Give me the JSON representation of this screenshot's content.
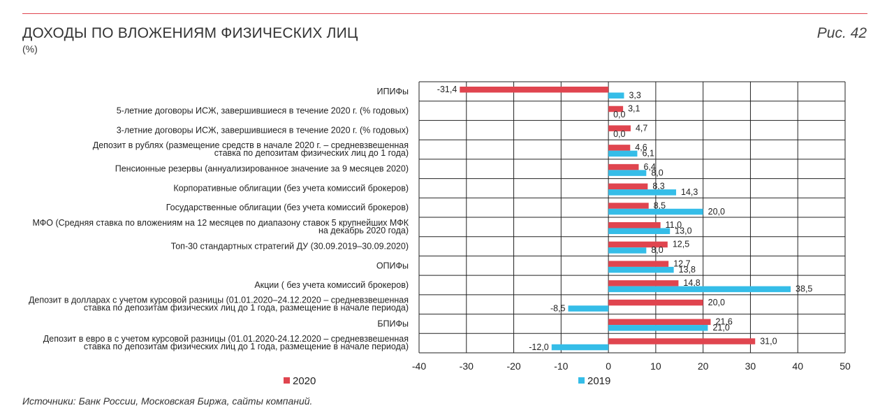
{
  "header": {
    "title": "ДОХОДЫ ПО ВЛОЖЕНИЯМ ФИЗИЧЕСКИХ ЛИЦ",
    "subtitle": "(%)",
    "figure_label": "Рис. 42"
  },
  "footer": {
    "source": "Источники: Банк России, Московская Биржа, сайты компаний."
  },
  "colors": {
    "accent_line": "#e0454f",
    "series_2020": "#e0454f",
    "series_2019": "#35bde8",
    "grid": "#222222"
  },
  "chart_data": {
    "type": "bar",
    "orientation": "horizontal",
    "title": "ДОХОДЫ ПО ВЛОЖЕНИЯМ ФИЗИЧЕСКИХ ЛИЦ",
    "subtitle": "(%)",
    "xlim": [
      -40,
      50
    ],
    "xticks": [
      -40,
      -30,
      -20,
      -10,
      0,
      10,
      20,
      30,
      40,
      50
    ],
    "grid": true,
    "legend_position": "bottom",
    "categories": [
      [
        "ИПИФы"
      ],
      [
        "5-летние договоры ИСЖ, завершившиеся в течение 2020 г. (% годовых)"
      ],
      [
        "3-летние договоры ИСЖ, завершившиеся в течение 2020 г. (% годовых)"
      ],
      [
        "Депозит в рублях (размещение средств в начале 2020 г. – средневзвешенная",
        "ставка по депозитам физических лиц до 1 года)"
      ],
      [
        "Пенсионные резервы (аннуализированное значение за 9 месяцев 2020)"
      ],
      [
        "Корпоративные облигации (без учета комиссий брокеров)"
      ],
      [
        "Государственные облигации (без учета комиссий брокеров)"
      ],
      [
        "МФО (Средняя ставка по вложениям на 12 месяцев по диапазону ставок 5 крупнейших МФК",
        "на декабрь 2020 года)"
      ],
      [
        "Топ-30 стандартных стратегий ДУ (30.09.2019–30.09.2020)"
      ],
      [
        "ОПИФы"
      ],
      [
        "Акции ( без учета комиссий брокеров)"
      ],
      [
        "Депозит в долларах с учетом курсовой разницы (01.01.2020–24.12.2020 – средневзвешенная",
        "ставка по депозитам физических лиц до 1 года, размещение в начале периода)"
      ],
      [
        "БПИФы"
      ],
      [
        "Депозит в евро в с учетом курсовой разницы (01.01.2020-24.12.2020 – средневзвешенная",
        "ставка по депозитам физических лиц до 1 года, размещение в начале периода)"
      ]
    ],
    "series": [
      {
        "name": "2020",
        "color": "#e0454f",
        "values": [
          -31.4,
          3.1,
          4.7,
          4.6,
          6.4,
          8.3,
          8.5,
          11.0,
          12.5,
          12.7,
          14.8,
          20.0,
          21.6,
          31.0
        ],
        "labels": [
          "-31,4",
          "3,1",
          "4,7",
          "4,6",
          "6,4",
          "8,3",
          "8,5",
          "11,0",
          "12,5",
          "12,7",
          "14,8",
          "20,0",
          "21,6",
          "31,0"
        ]
      },
      {
        "name": "2019",
        "color": "#35bde8",
        "values": [
          3.3,
          0.0,
          0.0,
          6.1,
          8.0,
          14.3,
          20.0,
          13.0,
          8.0,
          13.8,
          38.5,
          -8.5,
          21.0,
          -12.0
        ],
        "labels": [
          "3,3",
          "0,0",
          "0,0",
          "6,1",
          "8,0",
          "14,3",
          "20,0",
          "13,0",
          "8,0",
          "13,8",
          "38,5",
          "-8,5",
          "21,0",
          "-12,0"
        ]
      }
    ]
  }
}
